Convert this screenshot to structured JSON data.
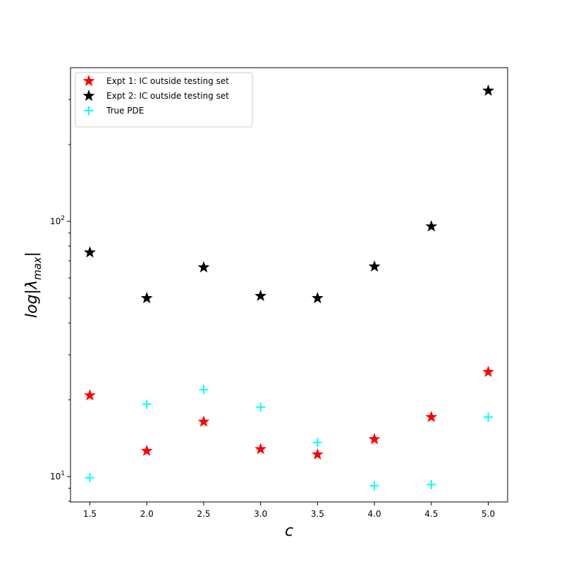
{
  "chart_data": {
    "type": "scatter",
    "title": "",
    "xlabel": "c",
    "ylabel": "log|λ_max|",
    "x_scale": "linear",
    "y_scale": "log",
    "xlim": [
      1.33,
      5.17
    ],
    "ylim": [
      7.95,
      400
    ],
    "x_ticks": [
      1.5,
      2.0,
      2.5,
      3.0,
      3.5,
      4.0,
      4.5,
      5.0
    ],
    "x_tick_labels": [
      "1.5",
      "2.0",
      "2.5",
      "3.0",
      "3.5",
      "4.0",
      "4.5",
      "5.0"
    ],
    "y_major_ticks": [
      10,
      100
    ],
    "y_major_tick_labels": [
      "10¹",
      "10²"
    ],
    "y_minor_ticks": [
      8,
      9,
      20,
      30,
      40,
      50,
      60,
      70,
      80,
      90,
      200,
      300
    ],
    "grid": false,
    "legend_position": "top-left",
    "series": [
      {
        "name": "Expt 1: IC outside testing set",
        "marker": "star",
        "color": "#ff0000",
        "x": [
          1.5,
          2.0,
          2.5,
          3.0,
          3.5,
          4.0,
          4.5,
          5.0
        ],
        "values": [
          20.8,
          12.6,
          16.4,
          12.8,
          12.2,
          14.0,
          17.1,
          25.7
        ]
      },
      {
        "name": "Expt 2: IC outside testing set",
        "marker": "star",
        "color": "#000000",
        "x": [
          1.5,
          2.0,
          2.5,
          3.0,
          3.5,
          4.0,
          4.5,
          5.0
        ],
        "values": [
          75.5,
          50.0,
          66.0,
          51.0,
          50.0,
          66.5,
          95.5,
          325.0
        ]
      },
      {
        "name": "True PDE",
        "marker": "plus",
        "color": "#00ffff",
        "x": [
          1.5,
          2.0,
          2.5,
          3.0,
          3.5,
          4.0,
          4.5,
          5.0
        ],
        "values": [
          9.9,
          19.2,
          21.9,
          18.7,
          13.6,
          9.2,
          9.3,
          17.1
        ]
      }
    ]
  }
}
